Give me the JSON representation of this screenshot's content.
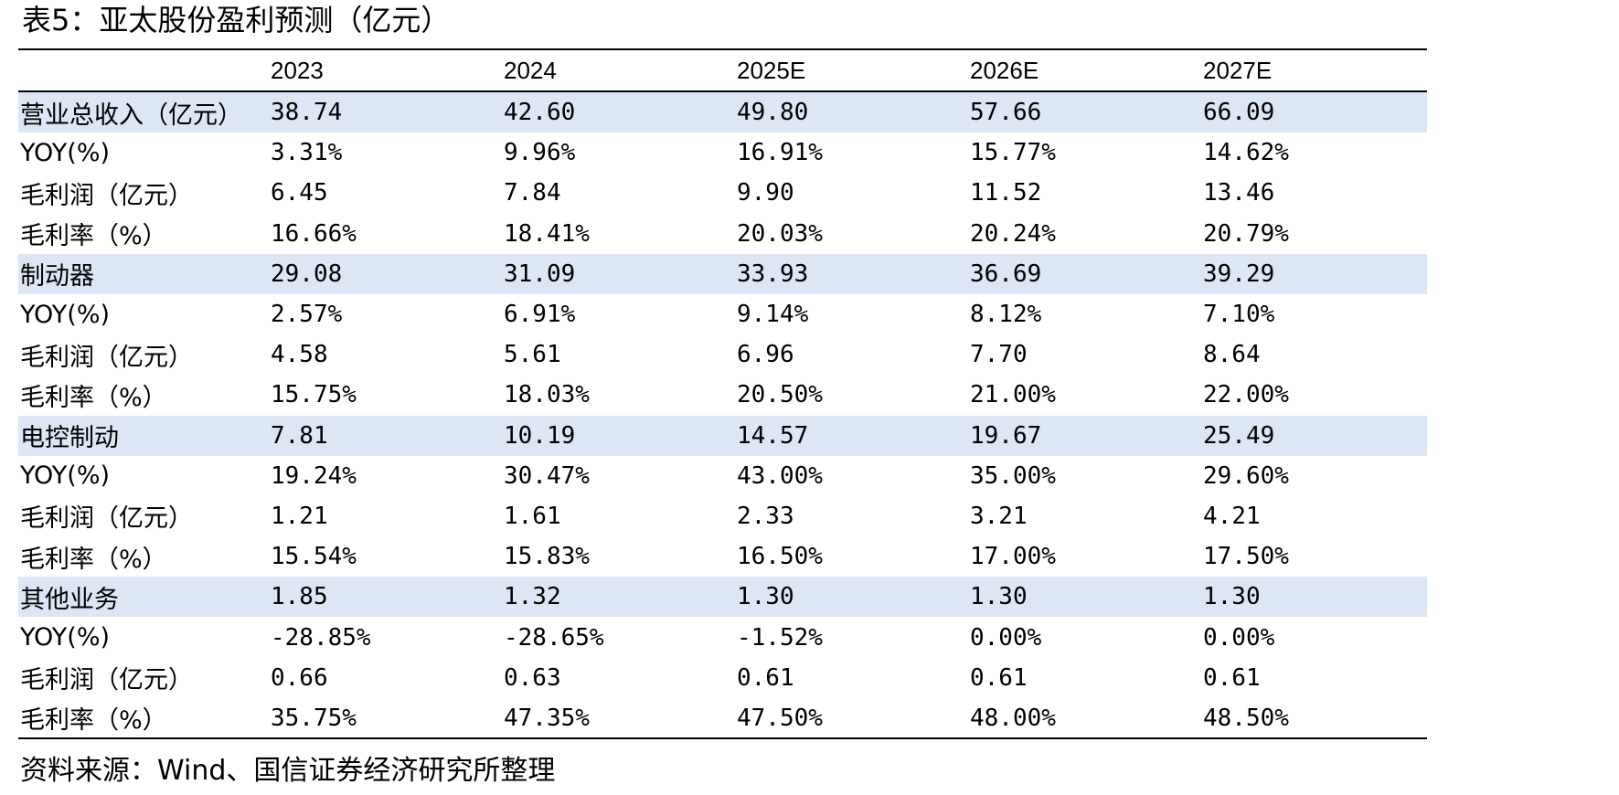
{
  "title": "表5：亚太股份盈利预测（亿元）",
  "columns": [
    "2023",
    "2024",
    "2025E",
    "2026E",
    "2027E"
  ],
  "rows": [
    {
      "label": "营业总收入（亿元）",
      "values": [
        "38.74",
        "42.60",
        "49.80",
        "57.66",
        "66.09"
      ],
      "highlight": true
    },
    {
      "label": "YOY(%)",
      "values": [
        "3.31%",
        "9.96%",
        "16.91%",
        "15.77%",
        "14.62%"
      ],
      "highlight": false
    },
    {
      "label": "毛利润（亿元）",
      "values": [
        "6.45",
        "7.84",
        "9.90",
        "11.52",
        "13.46"
      ],
      "highlight": false
    },
    {
      "label": "毛利率（%）",
      "values": [
        "16.66%",
        "18.41%",
        "20.03%",
        "20.24%",
        "20.79%"
      ],
      "highlight": false
    },
    {
      "label": "制动器",
      "values": [
        "29.08",
        "31.09",
        "33.93",
        "36.69",
        "39.29"
      ],
      "highlight": true
    },
    {
      "label": "YOY(%)",
      "values": [
        "2.57%",
        "6.91%",
        "9.14%",
        "8.12%",
        "7.10%"
      ],
      "highlight": false
    },
    {
      "label": "毛利润（亿元）",
      "values": [
        "4.58",
        "5.61",
        "6.96",
        "7.70",
        "8.64"
      ],
      "highlight": false
    },
    {
      "label": "毛利率（%）",
      "values": [
        "15.75%",
        "18.03%",
        "20.50%",
        "21.00%",
        "22.00%"
      ],
      "highlight": false
    },
    {
      "label": "电控制动",
      "values": [
        "7.81",
        "10.19",
        "14.57",
        "19.67",
        "25.49"
      ],
      "highlight": true
    },
    {
      "label": "YOY(%)",
      "values": [
        "19.24%",
        "30.47%",
        "43.00%",
        "35.00%",
        "29.60%"
      ],
      "highlight": false
    },
    {
      "label": "毛利润（亿元）",
      "values": [
        "1.21",
        "1.61",
        "2.33",
        "3.21",
        "4.21"
      ],
      "highlight": false
    },
    {
      "label": "毛利率（%）",
      "values": [
        "15.54%",
        "15.83%",
        "16.50%",
        "17.00%",
        "17.50%"
      ],
      "highlight": false
    },
    {
      "label": "其他业务",
      "values": [
        "1.85",
        "1.32",
        "1.30",
        "1.30",
        "1.30"
      ],
      "highlight": true
    },
    {
      "label": "YOY(%)",
      "values": [
        "-28.85%",
        "-28.65%",
        "-1.52%",
        "0.00%",
        "0.00%"
      ],
      "highlight": false
    },
    {
      "label": "毛利润（亿元）",
      "values": [
        "0.66",
        "0.63",
        "0.61",
        "0.61",
        "0.61"
      ],
      "highlight": false
    },
    {
      "label": "毛利率（%）",
      "values": [
        "35.75%",
        "47.35%",
        "47.50%",
        "48.00%",
        "48.50%"
      ],
      "highlight": false
    }
  ],
  "source": "资料来源：Wind、国信证券经济研究所整理",
  "colors": {
    "highlight_row": "#dce6f4",
    "rule": "#000000",
    "text": "#000000"
  }
}
